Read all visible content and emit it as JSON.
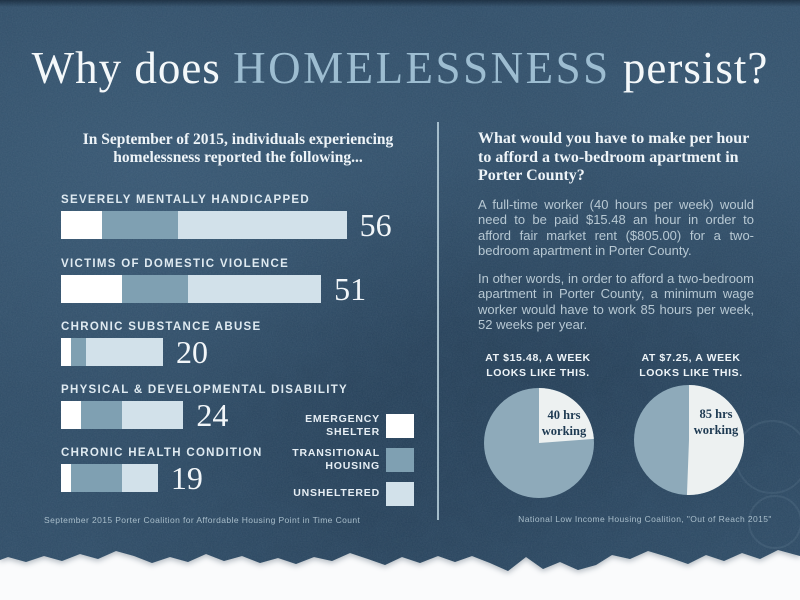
{
  "colors": {
    "background": "#2f4c66",
    "paper_below": "#fafbfc",
    "text_white": "#f4f8fa",
    "text_body": "#b7c8d3",
    "title_highlight": "#9dbdd1",
    "divider": "#b8d0dc",
    "bar_number": "#f2f6f9",
    "wedge_text": "#1e3a52",
    "pie_remainder": "#8eaaba",
    "pie_working": "#edf1f1"
  },
  "title": {
    "prefix": "Why does",
    "highlight": "HOMELESSNESS",
    "suffix": "persist?"
  },
  "left_panel": {
    "intro_line1": "In September of 2015, individuals experiencing",
    "intro_line2": "homelessness reported the following...",
    "source": "September 2015 Porter Coalition for Affordable Housing Point in Time Count"
  },
  "right_panel": {
    "heading_line1": "What would you have to make per hour",
    "heading_line2": "to afford a two-bedroom apartment in",
    "heading_line3": "Porter County?",
    "para1": "A full-time worker (40 hours per week) would need to be paid $15.48 an hour in order to afford fair market rent ($805.00) for a two-bedroom apartment in Porter County.",
    "para2": "In other words, in order to afford a two-bedroom apartment in Porter County, a minimum wage worker would have to work 85 hours per week, 52 weeks per year.",
    "source": "National Low Income Housing Coalition, \"Out of Reach 2015\""
  },
  "chart_data": [
    {
      "type": "bar",
      "orientation": "horizontal",
      "stacked": true,
      "title": "In September of 2015, individuals experiencing homelessness reported the following...",
      "categories": [
        "SEVERELY MENTALLY HANDICAPPED",
        "VICTIMS OF DOMESTIC VIOLENCE",
        "CHRONIC SUBSTANCE ABUSE",
        "PHYSICAL & DEVELOPMENTAL DISABILITY",
        "CHRONIC HEALTH CONDITION"
      ],
      "totals": [
        56,
        51,
        20,
        24,
        19
      ],
      "series": [
        {
          "name": "EMERGENCY SHELTER",
          "color": "#ffffff",
          "values": [
            8,
            12,
            2,
            4,
            2
          ]
        },
        {
          "name": "TRANSITIONAL HOUSING",
          "color": "#7fa0b2",
          "values": [
            15,
            13,
            3,
            8,
            10
          ]
        },
        {
          "name": "UNSHELTERED",
          "color": "#d2e1ea",
          "values": [
            33,
            26,
            15,
            12,
            7
          ]
        }
      ],
      "xlim": [
        0,
        56
      ],
      "grid": false,
      "value_labels": "totals shown right of each bar",
      "legend_position": "bottom-right",
      "source": "September 2015 Porter Coalition for Affordable Housing Point in Time Count"
    },
    {
      "type": "pie",
      "title": "AT $15.48, A WEEK LOOKS LIKE THIS.",
      "slices": [
        {
          "label": "40 hrs working",
          "value": 40,
          "color": "#edf1f1"
        },
        {
          "label": "",
          "value": 128,
          "color": "#8eaaba"
        }
      ],
      "start_angle_deg": 0
    },
    {
      "type": "pie",
      "title": "AT $7.25, A WEEK LOOKS LIKE THIS.",
      "slices": [
        {
          "label": "85 hrs working",
          "value": 85,
          "color": "#edf1f1"
        },
        {
          "label": "",
          "value": 83,
          "color": "#8eaaba"
        }
      ],
      "start_angle_deg": 0
    }
  ]
}
